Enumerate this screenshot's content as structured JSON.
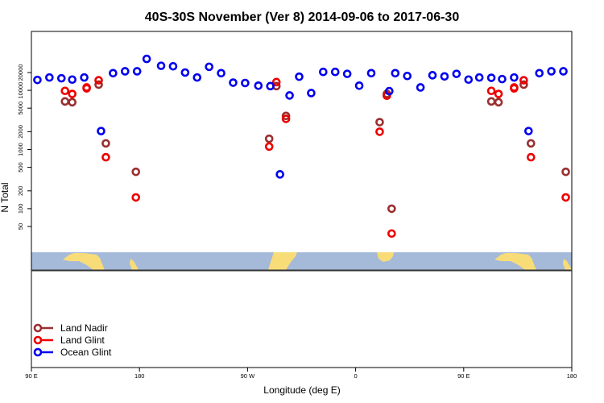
{
  "chart_data": {
    "type": "scatter",
    "title": "40S-30S November (Ver 8)   2014-09-06 to 2017-06-30",
    "xlabel": "Longitude (deg E)",
    "ylabel": "N Total",
    "y_scale": "log",
    "ylim": [
      30,
      50000
    ],
    "x_ticks": [
      {
        "x": 90,
        "label": "90 E"
      },
      {
        "x": 180,
        "label": "180"
      },
      {
        "x": 270,
        "label": "90 W"
      },
      {
        "x": 360,
        "label": "0"
      },
      {
        "x": 450,
        "label": "90 E"
      },
      {
        "x": 540,
        "label": "180"
      }
    ],
    "y_ticks_upper": [
      500,
      1000,
      2000,
      5000,
      10000,
      20000
    ],
    "y_ticks_lower": [
      50,
      100,
      200
    ],
    "legend": {
      "position": "bottom-left"
    },
    "colors": {
      "land_nadir": "#9b2f2f",
      "land_glint": "#ee0000",
      "ocean_glint": "#0000ee",
      "map_ocean": "#a5b9d8",
      "map_land": "#f8dc78"
    },
    "series": [
      {
        "name": "Land Nadir",
        "color": "#9b2f2f",
        "points": [
          [
            118,
            6500
          ],
          [
            124,
            6300
          ],
          [
            146,
            12500
          ],
          [
            152,
            1270
          ],
          [
            177,
            420
          ],
          [
            288,
            1520
          ],
          [
            294,
            11800
          ],
          [
            302,
            3700
          ],
          [
            380,
            2900
          ],
          [
            386,
            8700
          ],
          [
            390,
            100
          ],
          [
            473,
            6500
          ],
          [
            479,
            6300
          ],
          [
            500,
            12500
          ],
          [
            506,
            1270
          ],
          [
            535,
            420
          ]
        ]
      },
      {
        "name": "Land Glint",
        "color": "#ee0000",
        "points": [
          [
            118,
            9800
          ],
          [
            124,
            8700
          ],
          [
            136,
            10800
          ],
          [
            136,
            11200
          ],
          [
            146,
            14800
          ],
          [
            152,
            740
          ],
          [
            177,
            155
          ],
          [
            288,
            1120
          ],
          [
            294,
            13800
          ],
          [
            302,
            3300
          ],
          [
            380,
            2000
          ],
          [
            386,
            8100
          ],
          [
            390,
            38
          ],
          [
            473,
            9800
          ],
          [
            479,
            8700
          ],
          [
            492,
            10800
          ],
          [
            492,
            11200
          ],
          [
            500,
            14800
          ],
          [
            506,
            740
          ],
          [
            535,
            155
          ]
        ]
      },
      {
        "name": "Ocean Glint",
        "color": "#0000ee",
        "points": [
          [
            95,
            15000
          ],
          [
            105,
            16500
          ],
          [
            115,
            16000
          ],
          [
            124,
            15200
          ],
          [
            134,
            16500
          ],
          [
            148,
            2050
          ],
          [
            158,
            19500
          ],
          [
            168,
            21000
          ],
          [
            178,
            21000
          ],
          [
            186,
            34000
          ],
          [
            198,
            26000
          ],
          [
            208,
            25500
          ],
          [
            218,
            20000
          ],
          [
            228,
            16500
          ],
          [
            238,
            25000
          ],
          [
            248,
            19500
          ],
          [
            258,
            13500
          ],
          [
            268,
            13300
          ],
          [
            279,
            12000
          ],
          [
            289,
            11800
          ],
          [
            297,
            380
          ],
          [
            305,
            8200
          ],
          [
            313,
            17000
          ],
          [
            323,
            9000
          ],
          [
            333,
            20500
          ],
          [
            343,
            20500
          ],
          [
            353,
            19000
          ],
          [
            363,
            12000
          ],
          [
            373,
            19500
          ],
          [
            388,
            9700
          ],
          [
            393,
            19500
          ],
          [
            403,
            17500
          ],
          [
            414,
            11200
          ],
          [
            424,
            18000
          ],
          [
            434,
            17200
          ],
          [
            444,
            19000
          ],
          [
            454,
            15200
          ],
          [
            463,
            16500
          ],
          [
            473,
            16300
          ],
          [
            482,
            15500
          ],
          [
            492,
            16500
          ],
          [
            504,
            2050
          ],
          [
            513,
            19500
          ],
          [
            523,
            21000
          ],
          [
            533,
            21000
          ]
        ]
      }
    ]
  }
}
